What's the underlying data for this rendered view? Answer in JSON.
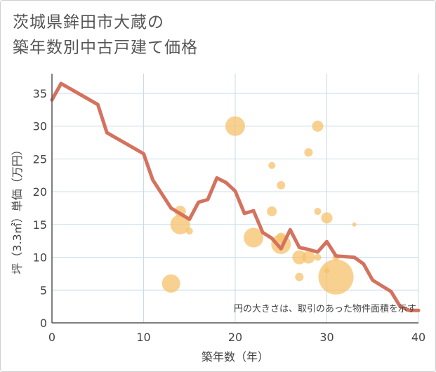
{
  "title": {
    "line1": "茨城県鉾田市大蔵の",
    "line2": "築年数別中古戸建て価格"
  },
  "colors": {
    "line": "#d4725e",
    "bubble": "#f5c16c",
    "grid": "#c8dbe8",
    "axis": "#555555"
  },
  "chart_data": {
    "type": "scatter",
    "xlabel": "築年数（年）",
    "ylabel": "坪（3.3㎡）単価（万円）",
    "xlim": [
      0,
      40
    ],
    "ylim": [
      0,
      38
    ],
    "xticks": [
      0,
      10,
      20,
      30,
      40
    ],
    "yticks": [
      0,
      5,
      10,
      15,
      20,
      25,
      30,
      35
    ],
    "grid": true,
    "note": "円の大きさは、取引のあった物件面積を示す",
    "bubbles": [
      {
        "x": 13,
        "y": 6,
        "size": 13
      },
      {
        "x": 14,
        "y": 17,
        "size": 8
      },
      {
        "x": 14,
        "y": 15,
        "size": 14
      },
      {
        "x": 15,
        "y": 14,
        "size": 5
      },
      {
        "x": 20,
        "y": 30,
        "size": 14
      },
      {
        "x": 22,
        "y": 13,
        "size": 14
      },
      {
        "x": 24,
        "y": 24,
        "size": 5
      },
      {
        "x": 24,
        "y": 17,
        "size": 7
      },
      {
        "x": 25,
        "y": 21,
        "size": 6
      },
      {
        "x": 25,
        "y": 13,
        "size": 7
      },
      {
        "x": 25,
        "y": 12,
        "size": 14
      },
      {
        "x": 27,
        "y": 10,
        "size": 10
      },
      {
        "x": 27,
        "y": 7,
        "size": 6
      },
      {
        "x": 28,
        "y": 26,
        "size": 6
      },
      {
        "x": 28,
        "y": 10,
        "size": 9
      },
      {
        "x": 29,
        "y": 30,
        "size": 8
      },
      {
        "x": 29,
        "y": 17,
        "size": 5
      },
      {
        "x": 29,
        "y": 10,
        "size": 5
      },
      {
        "x": 30,
        "y": 16,
        "size": 8
      },
      {
        "x": 30,
        "y": 8,
        "size": 4
      },
      {
        "x": 31,
        "y": 10,
        "size": 5
      },
      {
        "x": 31,
        "y": 7,
        "size": 25
      },
      {
        "x": 33,
        "y": 15,
        "size": 3
      }
    ],
    "series": [
      {
        "x": [
          0,
          1,
          5,
          6,
          10,
          11,
          13,
          15,
          16,
          17,
          18,
          19,
          20,
          21,
          22,
          23,
          24,
          25,
          26,
          27,
          28,
          29,
          30,
          31,
          32,
          33,
          34,
          35,
          37,
          38,
          39,
          40
        ],
        "values": [
          34,
          36.5,
          33.3,
          29,
          25.8,
          21.8,
          17.5,
          15.8,
          18.4,
          18.8,
          22.1,
          21.4,
          20.1,
          16.7,
          17.1,
          13.8,
          12.9,
          11.3,
          14.2,
          11.5,
          11.2,
          10.8,
          12.4,
          10.2,
          10.1,
          10.0,
          9.0,
          6.5,
          4.8,
          2.5,
          1.9,
          1.9
        ]
      }
    ]
  }
}
